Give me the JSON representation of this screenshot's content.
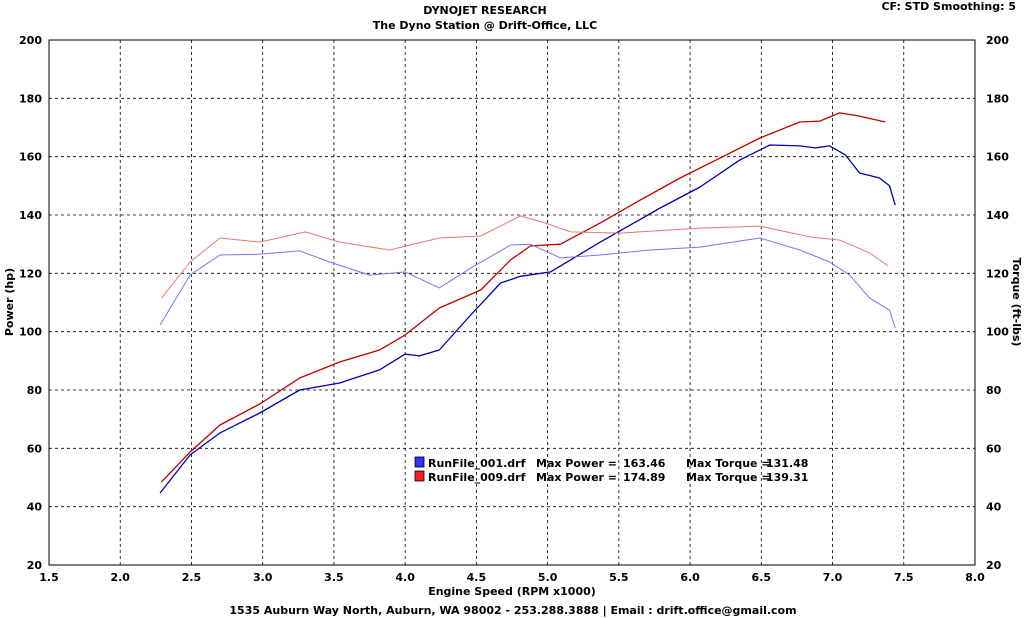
{
  "header": {
    "title": "DYNOJET RESEARCH",
    "subtitle": "The Dyno Station @ Drift-Office, LLC",
    "settings": "CF: STD  Smoothing: 5"
  },
  "footer": "1535 Auburn Way North, Auburn, WA 98002 - 253.288.3888 | Email : drift.office@gmail.com",
  "chart_data": {
    "type": "line",
    "title": "DYNOJET RESEARCH",
    "xlabel": "Engine Speed (RPM x1000)",
    "ylabel": "Power (hp)",
    "y2label": "Torque (ft-lbs)",
    "xlim": [
      1.5,
      8.0
    ],
    "ylim": [
      20,
      200
    ],
    "y2lim": [
      20,
      200
    ],
    "grid": true,
    "xticks": [
      "1.5",
      "2.0",
      "2.5",
      "3.0",
      "3.5",
      "4.0",
      "4.5",
      "5.0",
      "5.5",
      "6.0",
      "6.5",
      "7.0",
      "7.5",
      "8.0"
    ],
    "yticks": [
      "20",
      "40",
      "60",
      "80",
      "100",
      "120",
      "140",
      "160",
      "180",
      "200"
    ],
    "legend": [
      {
        "file": "RunFile_001.drf",
        "power_label": "Max Power =",
        "power": "163.46",
        "torque_label": "Max Torque =",
        "torque": "131.48",
        "color": "#3333ff"
      },
      {
        "file": "RunFile_009.drf",
        "power_label": "Max Power =",
        "power": "174.89",
        "torque_label": "Max Torque =",
        "torque": "139.31",
        "color": "#ee2222"
      }
    ],
    "series": [
      {
        "name": "RunFile_001 Power",
        "color": "#0000b4",
        "width": 1.3,
        "x": [
          2.28,
          2.49,
          2.7,
          2.98,
          3.26,
          3.54,
          3.82,
          4.0,
          4.1,
          4.24,
          4.46,
          4.67,
          4.81,
          5.02,
          5.37,
          5.79,
          6.07,
          6.35,
          6.56,
          6.77,
          6.88,
          6.98,
          7.09,
          7.19,
          7.33,
          7.4,
          7.44
        ],
        "y": [
          44.7,
          57.7,
          65.3,
          72.1,
          80.0,
          82.4,
          86.9,
          92.3,
          91.7,
          93.7,
          105.7,
          116.7,
          119,
          120.5,
          130.7,
          142.4,
          149.6,
          158.9,
          164,
          163.7,
          163,
          163.7,
          160.6,
          154.4,
          152.7,
          150,
          143.4
        ]
      },
      {
        "name": "RunFile_009 Power",
        "color": "#c00000",
        "width": 1.3,
        "x": [
          2.29,
          2.49,
          2.7,
          2.98,
          3.26,
          3.54,
          3.82,
          4.0,
          4.24,
          4.53,
          4.74,
          4.88,
          5.09,
          5.37,
          5.65,
          5.93,
          6.21,
          6.49,
          6.77,
          6.91,
          7.05,
          7.19,
          7.37
        ],
        "y": [
          48.5,
          58.7,
          68,
          75.2,
          84.1,
          89.6,
          93.7,
          98.9,
          108.1,
          114.3,
          124.6,
          129.4,
          130,
          137.3,
          145.1,
          152.7,
          159.5,
          166.4,
          171.9,
          172.2,
          175,
          173.9,
          171.9
        ]
      },
      {
        "name": "RunFile_001 Torque",
        "color": "#7777ee",
        "width": 1,
        "x": [
          2.28,
          2.49,
          2.7,
          2.98,
          3.26,
          3.47,
          3.75,
          4.0,
          4.24,
          4.46,
          4.74,
          4.88,
          5.09,
          5.37,
          5.72,
          6.07,
          6.49,
          6.77,
          6.98,
          7.12,
          7.26,
          7.4,
          7.44
        ],
        "y": [
          102.3,
          119.4,
          126.3,
          126.6,
          127.7,
          123.9,
          119.4,
          120.5,
          115,
          121.8,
          129.7,
          130,
          125.3,
          126.3,
          128,
          129,
          132.1,
          128,
          123.9,
          119.4,
          111.5,
          107.4,
          101.3
        ]
      },
      {
        "name": "RunFile_009 Torque",
        "color": "#ee7777",
        "width": 1,
        "x": [
          2.29,
          2.49,
          2.7,
          2.98,
          3.3,
          3.54,
          3.89,
          4.24,
          4.53,
          4.81,
          4.98,
          5.16,
          5.51,
          6.07,
          6.49,
          6.84,
          7.05,
          7.26,
          7.39
        ],
        "y": [
          111.5,
          123.9,
          132.1,
          130.7,
          134.2,
          130.7,
          128,
          132.1,
          132.8,
          139.7,
          137.3,
          134.2,
          133.8,
          135.5,
          136.2,
          132.5,
          131.4,
          127,
          122.5
        ]
      }
    ]
  }
}
